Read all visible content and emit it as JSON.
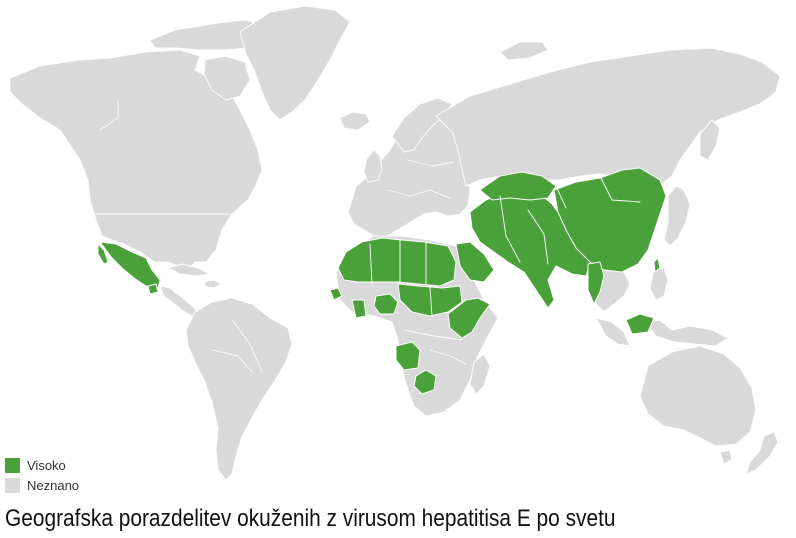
{
  "map": {
    "colors": {
      "high": "#4aa13a",
      "unknown": "#d9d9d9",
      "border": "#ffffff"
    }
  },
  "legend": {
    "items": [
      {
        "label": "Visoko",
        "color": "#4aa13a"
      },
      {
        "label": "Neznano",
        "color": "#d9d9d9"
      }
    ]
  },
  "caption": "Geografska porazdelitev okuženih z virusom hepatitisa E po svetu"
}
